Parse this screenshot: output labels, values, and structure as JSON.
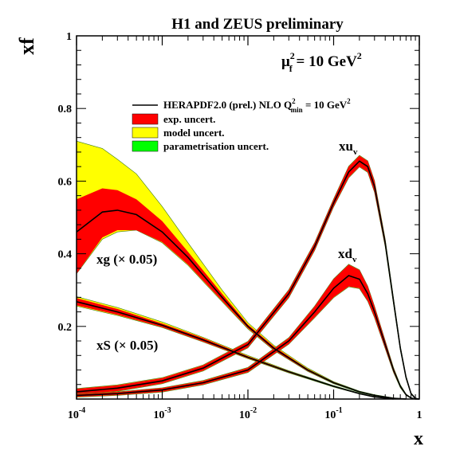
{
  "chart_data": {
    "type": "area",
    "title": "H1 and ZEUS preliminary",
    "ylabel": "xf",
    "xlabel": "x",
    "scale_text": {
      "base": "μ",
      "sub": "f",
      "sup": "2",
      "rest": " = 10 GeV",
      "rest_sup": "2"
    },
    "x_scale": "log",
    "xlim": [
      0.0001,
      1
    ],
    "ylim": [
      0,
      1
    ],
    "x_ticks": [
      {
        "base": "10",
        "exp": "-4",
        "value": 0.0001
      },
      {
        "base": "10",
        "exp": "-3",
        "value": 0.001
      },
      {
        "base": "10",
        "exp": "-2",
        "value": 0.01
      },
      {
        "base": "10",
        "exp": "-1",
        "value": 0.1
      },
      {
        "base": "1",
        "exp": "",
        "value": 1
      }
    ],
    "y_ticks": [
      {
        "label": "0.2",
        "value": 0.2
      },
      {
        "label": "0.4",
        "value": 0.4
      },
      {
        "label": "0.6",
        "value": 0.6
      },
      {
        "label": "0.8",
        "value": 0.8
      },
      {
        "label": "1",
        "value": 1
      }
    ],
    "legend": {
      "placement": "upper-center",
      "entries": [
        {
          "kind": "line",
          "color": "#000000",
          "text": "HERAPDF2.0 (prel.) NLO Q",
          "sup": "2",
          "sub": "min",
          "tail": " = 10 GeV",
          "tail_sup": "2"
        },
        {
          "kind": "box",
          "color": "#ff0000",
          "text": "exp. uncert."
        },
        {
          "kind": "box",
          "color": "#ffff00",
          "text": "model uncert."
        },
        {
          "kind": "box",
          "color": "#00ff00",
          "text": "parametrisation uncert."
        }
      ]
    },
    "colors": {
      "exp": "#ff0000",
      "model": "#ffff00",
      "param": "#00ff00",
      "central": "#000000"
    },
    "series": [
      {
        "name": "xg",
        "label": {
          "main": "xg (",
          "times": "×",
          "rest": " 0.05)"
        },
        "x": [
          0.0001,
          0.0002,
          0.0003,
          0.0005,
          0.001,
          0.002,
          0.005,
          0.01,
          0.02,
          0.05,
          0.1,
          0.2,
          0.3,
          0.5,
          0.7
        ],
        "y": [
          0.46,
          0.515,
          0.52,
          0.508,
          0.46,
          0.39,
          0.28,
          0.2,
          0.14,
          0.08,
          0.045,
          0.02,
          0.01,
          0.002,
          0.0
        ],
        "exp_lo": [
          0.345,
          0.445,
          0.465,
          0.465,
          0.432,
          0.37,
          0.27,
          0.195,
          0.135,
          0.077,
          0.043,
          0.019,
          0.009,
          0.001,
          0.0
        ],
        "exp_hi": [
          0.55,
          0.58,
          0.575,
          0.55,
          0.49,
          0.405,
          0.29,
          0.205,
          0.145,
          0.083,
          0.047,
          0.021,
          0.011,
          0.003,
          0.0
        ],
        "tot_lo": [
          0.345,
          0.44,
          0.46,
          0.465,
          0.43,
          0.368,
          0.268,
          0.193,
          0.134,
          0.076,
          0.042,
          0.018,
          0.009,
          0.001,
          0.0
        ],
        "tot_hi": [
          0.71,
          0.69,
          0.66,
          0.62,
          0.53,
          0.43,
          0.3,
          0.21,
          0.148,
          0.085,
          0.048,
          0.022,
          0.012,
          0.003,
          0.0
        ]
      },
      {
        "name": "xS",
        "label": {
          "main": "xS (",
          "times": "×",
          "rest": " 0.05)"
        },
        "x": [
          0.0001,
          0.0003,
          0.001,
          0.003,
          0.01,
          0.03,
          0.1,
          0.2,
          0.3,
          0.5
        ],
        "y": [
          0.268,
          0.24,
          0.203,
          0.163,
          0.115,
          0.075,
          0.035,
          0.015,
          0.006,
          0.0
        ],
        "exp_lo": [
          0.258,
          0.232,
          0.198,
          0.158,
          0.112,
          0.073,
          0.034,
          0.014,
          0.005,
          0.0
        ],
        "exp_hi": [
          0.278,
          0.248,
          0.208,
          0.168,
          0.118,
          0.077,
          0.036,
          0.016,
          0.007,
          0.0
        ],
        "tot_lo": [
          0.256,
          0.23,
          0.197,
          0.157,
          0.111,
          0.072,
          0.033,
          0.014,
          0.005,
          0.0
        ],
        "tot_hi": [
          0.282,
          0.252,
          0.212,
          0.17,
          0.12,
          0.078,
          0.037,
          0.016,
          0.007,
          0.0
        ]
      },
      {
        "name": "xuv",
        "label": {
          "main": "xu",
          "sub": "v"
        },
        "x": [
          0.0001,
          0.0003,
          0.001,
          0.003,
          0.01,
          0.03,
          0.06,
          0.1,
          0.15,
          0.2,
          0.25,
          0.3,
          0.4,
          0.5,
          0.6,
          0.7,
          0.8,
          0.9,
          1.0
        ],
        "y": [
          0.02,
          0.03,
          0.05,
          0.085,
          0.15,
          0.29,
          0.42,
          0.54,
          0.625,
          0.655,
          0.64,
          0.585,
          0.43,
          0.27,
          0.14,
          0.06,
          0.015,
          0.002,
          0.0
        ],
        "exp_lo": [
          0.012,
          0.022,
          0.043,
          0.078,
          0.142,
          0.28,
          0.41,
          0.53,
          0.61,
          0.64,
          0.625,
          0.57,
          0.42,
          0.262,
          0.135,
          0.057,
          0.013,
          0.001,
          0.0
        ],
        "exp_hi": [
          0.028,
          0.038,
          0.058,
          0.093,
          0.158,
          0.3,
          0.43,
          0.55,
          0.64,
          0.67,
          0.655,
          0.6,
          0.44,
          0.278,
          0.145,
          0.063,
          0.017,
          0.003,
          0.0
        ],
        "tot_lo": [
          0.011,
          0.021,
          0.042,
          0.077,
          0.141,
          0.279,
          0.409,
          0.529,
          0.609,
          0.639,
          0.624,
          0.569,
          0.419,
          0.261,
          0.134,
          0.056,
          0.013,
          0.001,
          0.0
        ],
        "tot_hi": [
          0.029,
          0.039,
          0.059,
          0.094,
          0.159,
          0.301,
          0.431,
          0.551,
          0.641,
          0.671,
          0.656,
          0.601,
          0.441,
          0.279,
          0.146,
          0.064,
          0.017,
          0.003,
          0.0
        ]
      },
      {
        "name": "xdv",
        "label": {
          "main": "xd",
          "sub": "v"
        },
        "x": [
          0.0001,
          0.0003,
          0.001,
          0.003,
          0.01,
          0.03,
          0.06,
          0.1,
          0.15,
          0.2,
          0.25,
          0.3,
          0.4,
          0.5,
          0.6,
          0.7,
          0.8,
          0.9,
          1.0
        ],
        "y": [
          0.01,
          0.015,
          0.025,
          0.045,
          0.08,
          0.16,
          0.24,
          0.305,
          0.34,
          0.33,
          0.29,
          0.24,
          0.15,
          0.08,
          0.035,
          0.012,
          0.003,
          0.0,
          0.0
        ],
        "exp_lo": [
          0.006,
          0.011,
          0.02,
          0.04,
          0.074,
          0.152,
          0.225,
          0.28,
          0.31,
          0.305,
          0.27,
          0.225,
          0.14,
          0.074,
          0.032,
          0.01,
          0.002,
          0.0,
          0.0
        ],
        "exp_hi": [
          0.014,
          0.019,
          0.03,
          0.05,
          0.086,
          0.168,
          0.255,
          0.33,
          0.37,
          0.355,
          0.31,
          0.255,
          0.16,
          0.086,
          0.038,
          0.014,
          0.004,
          0.0,
          0.0
        ],
        "tot_lo": [
          0.005,
          0.01,
          0.019,
          0.039,
          0.073,
          0.151,
          0.224,
          0.279,
          0.309,
          0.304,
          0.269,
          0.224,
          0.139,
          0.073,
          0.031,
          0.01,
          0.002,
          0.0,
          0.0
        ],
        "tot_hi": [
          0.015,
          0.02,
          0.031,
          0.051,
          0.087,
          0.169,
          0.256,
          0.331,
          0.371,
          0.356,
          0.311,
          0.256,
          0.161,
          0.087,
          0.039,
          0.014,
          0.004,
          0.0,
          0.0
        ]
      }
    ]
  }
}
